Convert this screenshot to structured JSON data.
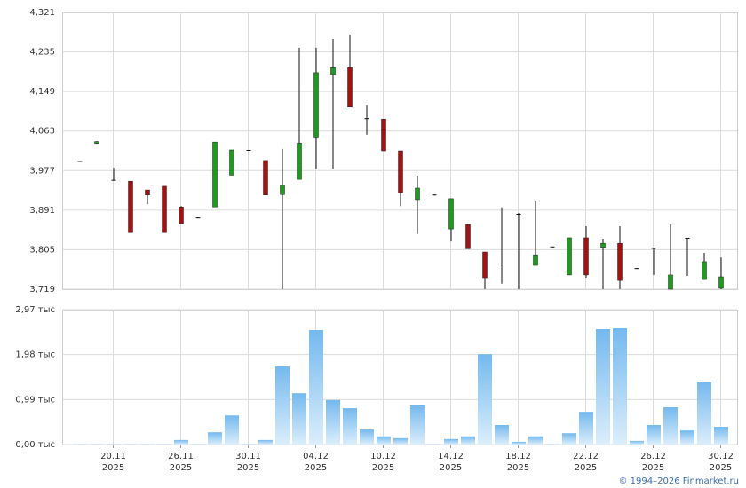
{
  "chart_data": [
    {
      "type": "candlestick",
      "categories": [
        null,
        null,
        "20.11",
        null,
        null,
        null,
        "26.11",
        null,
        null,
        null,
        "30.11",
        null,
        null,
        null,
        "04.12",
        null,
        null,
        null,
        "10.12",
        null,
        null,
        null,
        "14.12",
        null,
        null,
        null,
        "18.12",
        null,
        null,
        null,
        "22.12",
        null,
        null,
        null,
        "26.12",
        null,
        null,
        null,
        "30.12"
      ],
      "category_years": [
        null,
        null,
        "2025",
        null,
        null,
        null,
        "2025",
        null,
        null,
        null,
        "2025",
        null,
        null,
        null,
        "2025",
        null,
        null,
        null,
        "2025",
        null,
        null,
        null,
        "2025",
        null,
        null,
        null,
        "2025",
        null,
        null,
        null,
        "2025",
        null,
        null,
        null,
        "2025",
        null,
        null,
        null,
        "2025"
      ],
      "open": [
        3998,
        4036,
        3957,
        3954,
        3935,
        3943,
        3898,
        3875,
        3898,
        3967,
        4022,
        3999,
        3925,
        3958,
        4050,
        4186,
        4201,
        4091,
        4089,
        4020,
        3914,
        3925,
        3850,
        3860,
        3800,
        3775,
        3883,
        3771,
        3812,
        3750,
        3831,
        3810,
        3819,
        3765,
        3809,
        3719,
        3831,
        3740,
        3721
      ],
      "high": [
        3998,
        4041,
        3983,
        3954,
        3935,
        3943,
        3900,
        3875,
        4039,
        4022,
        4022,
        3999,
        4024,
        4244,
        4244,
        4263,
        4273,
        4120,
        4089,
        4020,
        3966,
        3925,
        3916,
        3860,
        3800,
        3897,
        3885,
        3910,
        3812,
        3831,
        3856,
        3829,
        3856,
        3765,
        3809,
        3860,
        3831,
        3798,
        3788
      ],
      "low": [
        3998,
        4035,
        3956,
        3842,
        3904,
        3842,
        3862,
        3875,
        3898,
        3967,
        4022,
        3924,
        3719,
        3958,
        3981,
        3981,
        4115,
        4055,
        4020,
        3900,
        3839,
        3925,
        3823,
        3807,
        3719,
        3731,
        3719,
        3771,
        3812,
        3750,
        3744,
        3719,
        3719,
        3765,
        3750,
        3719,
        3748,
        3740,
        3719
      ],
      "close": [
        3998,
        4040,
        3957,
        3842,
        3924,
        3842,
        3862,
        3875,
        4039,
        4022,
        4022,
        3924,
        3946,
        4037,
        4190,
        4201,
        4115,
        4091,
        4020,
        3929,
        3939,
        3925,
        3916,
        3807,
        3744,
        3775,
        3883,
        3794,
        3812,
        3831,
        3750,
        3819,
        3738,
        3765,
        3809,
        3750,
        3831,
        3779,
        3746
      ],
      "up_color": "#1e9a1e",
      "down_color": "#a31212",
      "flat_color": "#111111",
      "ylim": [
        3719,
        4321
      ],
      "yticks": [
        {
          "value": 3719,
          "label": "3,719"
        },
        {
          "value": 3805,
          "label": "3,805"
        },
        {
          "value": 3891,
          "label": "3,891"
        },
        {
          "value": 3977,
          "label": "3,977"
        },
        {
          "value": 4063,
          "label": "4,063"
        },
        {
          "value": 4149,
          "label": "4,149"
        },
        {
          "value": 4235,
          "label": "4,235"
        },
        {
          "value": 4321,
          "label": "4,321"
        }
      ],
      "grid": true
    },
    {
      "type": "bar",
      "values": [
        0.01,
        0.01,
        0.01,
        0.01,
        0.01,
        0.01,
        0.1,
        0.01,
        0.27,
        0.64,
        0.01,
        0.1,
        1.72,
        1.13,
        2.52,
        0.98,
        0.8,
        0.33,
        0.18,
        0.14,
        0.86,
        0.01,
        0.12,
        0.18,
        1.99,
        0.43,
        0.06,
        0.18,
        0.01,
        0.25,
        0.72,
        2.54,
        2.56,
        0.08,
        0.43,
        0.82,
        0.31,
        1.37,
        0.39
      ],
      "ylim": [
        0,
        2.97
      ],
      "yticks": [
        {
          "value": 0,
          "label": "0,00 тыс"
        },
        {
          "value": 0.99,
          "label": "0,99 тыс"
        },
        {
          "value": 1.98,
          "label": "1,98 тыс"
        },
        {
          "value": 2.97,
          "label": "2,97 тыс"
        }
      ],
      "grid": true
    }
  ],
  "footer": "© 1994–2026 Finmarket.ru"
}
